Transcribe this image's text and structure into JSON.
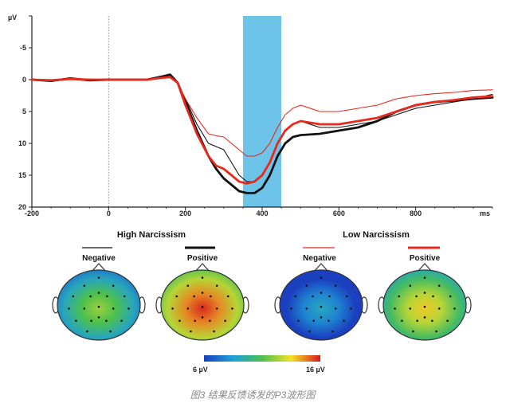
{
  "chart_data": {
    "type": "line",
    "title": "",
    "xlabel": "",
    "ylabel": "",
    "y_unit_label": "µV",
    "x_unit_label": "ms",
    "xlim": [
      -200,
      1000
    ],
    "ylim": [
      -10,
      20
    ],
    "y_inverted": true,
    "x_ticks": [
      -200,
      0,
      200,
      400,
      600,
      800
    ],
    "x_tick_labels": [
      "-200",
      "0",
      "200",
      "400",
      "600",
      "800"
    ],
    "y_ticks": [
      -10,
      -5,
      0,
      5,
      10,
      15,
      20
    ],
    "y_tick_labels": [
      "",
      "-5",
      "0",
      "5",
      "10",
      "15",
      "20"
    ],
    "highlight_window": [
      350,
      450
    ],
    "colors": {
      "black": "#111111",
      "red": "#e8291c",
      "window": "#6ec3e8",
      "colorbar_low": "#1a3fbf",
      "colorbar_high": "#d7191c"
    },
    "series": [
      {
        "line": "thin black",
        "x": [
          -200,
          -150,
          -100,
          -50,
          0,
          50,
          100,
          140,
          160,
          180,
          200,
          230,
          260,
          280,
          300,
          320,
          340,
          360,
          380,
          400,
          420,
          440,
          460,
          480,
          500,
          550,
          600,
          650,
          700,
          750,
          800,
          850,
          900,
          950,
          1000
        ],
        "y": [
          0,
          0.2,
          -0.2,
          0.1,
          0,
          0,
          0,
          -0.6,
          -0.5,
          0.5,
          3,
          7,
          10,
          10.5,
          11,
          13,
          15,
          16,
          16,
          15,
          13,
          10,
          8,
          7,
          6.5,
          7.5,
          7.5,
          7,
          6.5,
          5.5,
          4.5,
          4,
          3.5,
          3,
          2.3
        ]
      },
      {
        "line": "thick black",
        "x": [
          -200,
          -150,
          -100,
          -50,
          0,
          50,
          100,
          140,
          160,
          180,
          200,
          230,
          260,
          280,
          300,
          320,
          340,
          360,
          380,
          400,
          420,
          440,
          460,
          480,
          500,
          550,
          600,
          650,
          700,
          750,
          800,
          850,
          900,
          950,
          1000
        ],
        "y": [
          0,
          0.2,
          -0.2,
          0.1,
          0,
          0,
          0,
          -0.5,
          -0.8,
          0.5,
          3.5,
          8,
          12,
          14,
          15.5,
          16.5,
          17.5,
          17.8,
          17.8,
          17,
          15,
          12,
          10,
          9,
          8.7,
          8.5,
          8,
          7.5,
          6.5,
          5,
          4,
          3.5,
          3.3,
          3,
          2.8
        ]
      },
      {
        "line": "thin red",
        "x": [
          -200,
          -150,
          -100,
          -50,
          0,
          50,
          100,
          140,
          160,
          180,
          200,
          230,
          260,
          280,
          300,
          320,
          340,
          360,
          380,
          400,
          420,
          440,
          460,
          480,
          500,
          550,
          600,
          650,
          700,
          750,
          800,
          850,
          900,
          950,
          1000
        ],
        "y": [
          0,
          0.1,
          -0.1,
          0,
          0,
          0,
          0,
          -0.3,
          -0.3,
          0.5,
          3,
          6,
          8.5,
          8.8,
          9,
          10,
          11,
          12,
          12,
          11.5,
          10,
          7.5,
          5.5,
          4.5,
          4,
          5,
          5,
          4.5,
          4,
          3,
          2.5,
          2.2,
          2,
          1.7,
          1.6
        ]
      },
      {
        "line": "thick red",
        "x": [
          -200,
          -150,
          -100,
          -50,
          0,
          50,
          100,
          140,
          160,
          180,
          200,
          230,
          260,
          280,
          300,
          320,
          340,
          360,
          380,
          400,
          420,
          440,
          460,
          480,
          500,
          550,
          600,
          650,
          700,
          750,
          800,
          850,
          900,
          950,
          1000
        ],
        "y": [
          0,
          0.1,
          -0.1,
          0,
          0,
          0,
          0,
          -0.3,
          -0.4,
          0.5,
          4,
          8.5,
          12,
          13.5,
          14,
          15,
          16,
          16.3,
          16,
          15,
          13,
          10,
          8,
          7,
          6.5,
          7,
          7,
          6.5,
          6,
          5,
          4,
          3.5,
          3.2,
          2.8,
          2.6
        ]
      }
    ],
    "legend": {
      "groups": [
        {
          "label": "High Narcissism",
          "items": [
            {
              "label": "Negative",
              "color": "#111111",
              "weight": "thin"
            },
            {
              "label": "Positive",
              "color": "#111111",
              "weight": "thick"
            }
          ]
        },
        {
          "label": "Low Narcissism",
          "items": [
            {
              "label": "Negative",
              "color": "#e8291c",
              "weight": "thin"
            },
            {
              "label": "Positive",
              "color": "#e8291c",
              "weight": "thick"
            }
          ]
        }
      ]
    },
    "topomaps": [
      {
        "condition": "High Narcissism Negative",
        "max_level": 0.62
      },
      {
        "condition": "High Narcissism Positive",
        "max_level": 0.98
      },
      {
        "condition": "Low Narcissism Negative",
        "max_level": 0.3
      },
      {
        "condition": "Low Narcissism Positive",
        "max_level": 0.78
      }
    ],
    "colorbar": {
      "min_label": "6 µV",
      "max_label": "16 µV",
      "min": 6,
      "max": 16
    }
  },
  "caption": "图3 结果反馈诱发的P3波形图"
}
